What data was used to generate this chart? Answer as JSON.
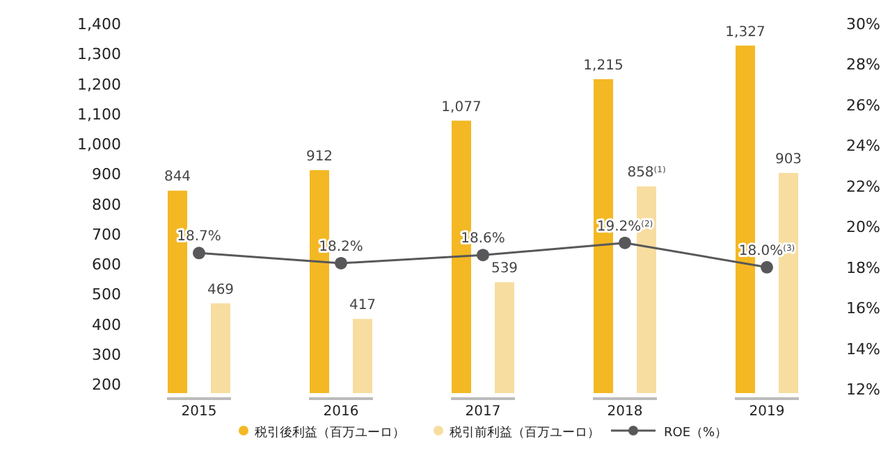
{
  "chart_data": {
    "type": "bar",
    "categories": [
      "2015",
      "2016",
      "2017",
      "2018",
      "2019"
    ],
    "series": [
      {
        "name": "税引後利益（百万ユーロ）",
        "color": "#f3b823",
        "values": [
          844,
          912,
          1077,
          1215,
          1327
        ],
        "value_labels": [
          "844",
          "912",
          "1,077",
          "1,215",
          "1,327"
        ]
      },
      {
        "name": "税引前利益（百万ユーロ）",
        "color": "#f8dda0",
        "values": [
          469,
          417,
          539,
          858,
          903
        ],
        "value_labels": [
          "469",
          "417",
          "539",
          "858$^{(1)}$",
          "903"
        ]
      },
      {
        "name": "ROE（%）",
        "type": "line",
        "axis": "y2",
        "color": "#58585a",
        "marker": "circle",
        "values": [
          18.7,
          18.2,
          18.6,
          19.2,
          18.0
        ],
        "value_labels": [
          "18.7%",
          "18.2%",
          "18.6%",
          "19.2%$^{(2)}$",
          "18.0%$^{(3)}$"
        ]
      }
    ],
    "ylim": [
      170,
      1400
    ],
    "yticks": [
      {
        "value": 200,
        "label": "200"
      },
      {
        "value": 300,
        "label": "300"
      },
      {
        "value": 400,
        "label": "400"
      },
      {
        "value": 500,
        "label": "500"
      },
      {
        "value": 600,
        "label": "600"
      },
      {
        "value": 700,
        "label": "700"
      },
      {
        "value": 800,
        "label": "800"
      },
      {
        "value": 900,
        "label": "900"
      },
      {
        "value": 1000,
        "label": "1,000"
      },
      {
        "value": 1100,
        "label": "1,100"
      },
      {
        "value": 1200,
        "label": "1,200"
      },
      {
        "value": 1300,
        "label": "1,300"
      },
      {
        "value": 1400,
        "label": "1,400"
      }
    ],
    "y2lim": [
      11.8,
      30
    ],
    "y2ticks": [
      {
        "value": 12,
        "label": "12%"
      },
      {
        "value": 14,
        "label": "14%"
      },
      {
        "value": 16,
        "label": "16%"
      },
      {
        "value": 18,
        "label": "18%"
      },
      {
        "value": 20,
        "label": "20%"
      },
      {
        "value": 22,
        "label": "22%"
      },
      {
        "value": 24,
        "label": "24%"
      },
      {
        "value": 26,
        "label": "26%"
      },
      {
        "value": 28,
        "label": "28%"
      },
      {
        "value": 30,
        "label": "30%"
      }
    ],
    "grid": false,
    "legend": "bottom"
  }
}
